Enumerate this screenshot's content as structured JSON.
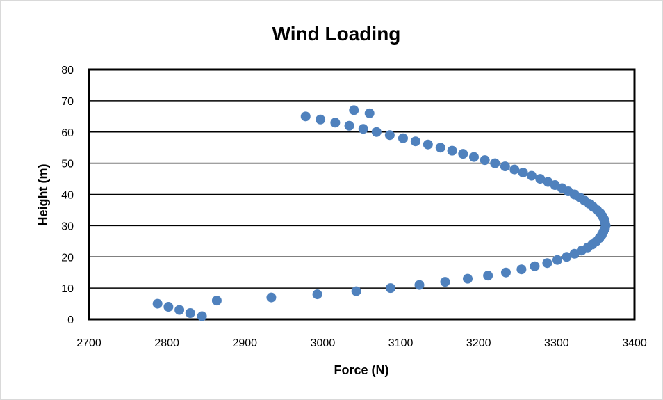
{
  "chart_data": {
    "type": "scatter",
    "title": "Wind Loading",
    "xlabel": "Force (N)",
    "ylabel": "Height (m)",
    "xlim": [
      2700,
      3400
    ],
    "ylim": [
      0,
      80
    ],
    "x_ticks": [
      2700,
      2800,
      2900,
      3000,
      3100,
      3200,
      3300,
      3400
    ],
    "y_ticks": [
      0,
      10,
      20,
      30,
      40,
      50,
      60,
      70,
      80
    ],
    "grid": "horizontal",
    "legend": "none",
    "marker_color": "#4f81bd",
    "series": [
      {
        "points": [
          [
            2845,
            1
          ],
          [
            2830,
            2
          ],
          [
            2816,
            3
          ],
          [
            2802,
            4
          ],
          [
            2788,
            5
          ],
          [
            2864,
            6
          ],
          [
            2934,
            7
          ],
          [
            2993,
            8
          ],
          [
            3043,
            9
          ],
          [
            3087,
            10
          ],
          [
            3124,
            11
          ],
          [
            3157,
            12
          ],
          [
            3186,
            13
          ],
          [
            3212,
            14
          ],
          [
            3235,
            15
          ],
          [
            3255,
            16
          ],
          [
            3272,
            17
          ],
          [
            3288,
            18
          ],
          [
            3301,
            19
          ],
          [
            3313,
            20
          ],
          [
            3323,
            21
          ],
          [
            3332,
            22
          ],
          [
            3340,
            23
          ],
          [
            3346,
            24
          ],
          [
            3351,
            25
          ],
          [
            3355,
            26
          ],
          [
            3358,
            27
          ],
          [
            3360,
            28
          ],
          [
            3362,
            29
          ],
          [
            3363,
            30
          ],
          [
            3362,
            31
          ],
          [
            3361,
            32
          ],
          [
            3359,
            33
          ],
          [
            3356,
            34
          ],
          [
            3352,
            35
          ],
          [
            3347,
            36
          ],
          [
            3342,
            37
          ],
          [
            3336,
            38
          ],
          [
            3330,
            39
          ],
          [
            3323,
            40
          ],
          [
            3315,
            41
          ],
          [
            3307,
            42
          ],
          [
            3298,
            43
          ],
          [
            3289,
            44
          ],
          [
            3279,
            45
          ],
          [
            3268,
            46
          ],
          [
            3257,
            47
          ],
          [
            3246,
            48
          ],
          [
            3234,
            49
          ],
          [
            3221,
            50
          ],
          [
            3208,
            51
          ],
          [
            3194,
            52
          ],
          [
            3180,
            53
          ],
          [
            3166,
            54
          ],
          [
            3151,
            55
          ],
          [
            3135,
            56
          ],
          [
            3119,
            57
          ],
          [
            3103,
            58
          ],
          [
            3086,
            59
          ],
          [
            3069,
            60
          ],
          [
            3052,
            61
          ],
          [
            3034,
            62
          ],
          [
            3016,
            63
          ],
          [
            2997,
            64
          ],
          [
            2978,
            65
          ],
          [
            3060,
            66
          ],
          [
            3040,
            67
          ]
        ]
      }
    ]
  }
}
